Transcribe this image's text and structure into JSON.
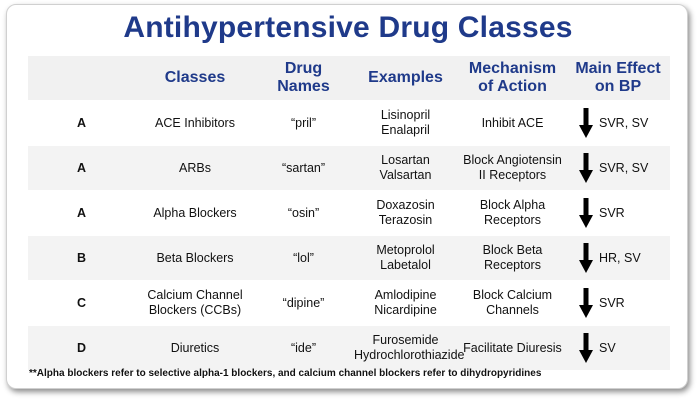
{
  "title": "Antihypertensive Drug Classes",
  "headers": {
    "classes": "Classes",
    "drug_names": "Drug Names",
    "examples": "Examples",
    "mechanism": "Mechanism of Action",
    "main_effect": "Main Effect on BP"
  },
  "rows": [
    {
      "group": "A",
      "class": "ACE Inhibitors",
      "drug_name": "“pril”",
      "example1": "Lisinopril",
      "example2": "Enalapril",
      "mechanism1": "Inhibit ACE",
      "mechanism2": "",
      "effect": "SVR, SV",
      "arrow_icon": "down-arrow-icon"
    },
    {
      "group": "A",
      "class": "ARBs",
      "drug_name": "“sartan”",
      "example1": "Losartan",
      "example2": "Valsartan",
      "mechanism1": "Block Angiotensin",
      "mechanism2": "II Receptors",
      "effect": "SVR, SV",
      "arrow_icon": "down-arrow-icon"
    },
    {
      "group": "A",
      "class": "Alpha Blockers",
      "drug_name": "“osin”",
      "example1": "Doxazosin",
      "example2": "Terazosin",
      "mechanism1": "Block Alpha",
      "mechanism2": "Receptors",
      "effect": "SVR",
      "arrow_icon": "down-arrow-icon"
    },
    {
      "group": "B",
      "class": "Beta Blockers",
      "drug_name": "“lol”",
      "example1": "Metoprolol",
      "example2": "Labetalol",
      "mechanism1": "Block Beta",
      "mechanism2": "Receptors",
      "effect": "HR, SV",
      "arrow_icon": "down-arrow-icon"
    },
    {
      "group": "C",
      "class": "Calcium Channel",
      "class2": "Blockers (CCBs)",
      "drug_name": "“dipine”",
      "example1": "Amlodipine",
      "example2": "Nicardipine",
      "mechanism1": "Block Calcium",
      "mechanism2": "Channels",
      "effect": "SVR",
      "arrow_icon": "down-arrow-icon"
    },
    {
      "group": "D",
      "class": "Diuretics",
      "drug_name": "“ide”",
      "example1": "Furosemide",
      "example2": "Hydrochlorothiazide",
      "mechanism1": "Facilitate Diuresis",
      "mechanism2": "",
      "effect": "SV",
      "arrow_icon": "down-arrow-icon"
    }
  ],
  "footnote": "**Alpha blockers refer to selective alpha-1 blockers, and calcium channel blockers refer to dihydropyridines",
  "colors": {
    "title": "#1f3a8a",
    "header_text": "#1f3a8a",
    "group_letter": "#1f3a8a",
    "arrow": "#000000"
  }
}
